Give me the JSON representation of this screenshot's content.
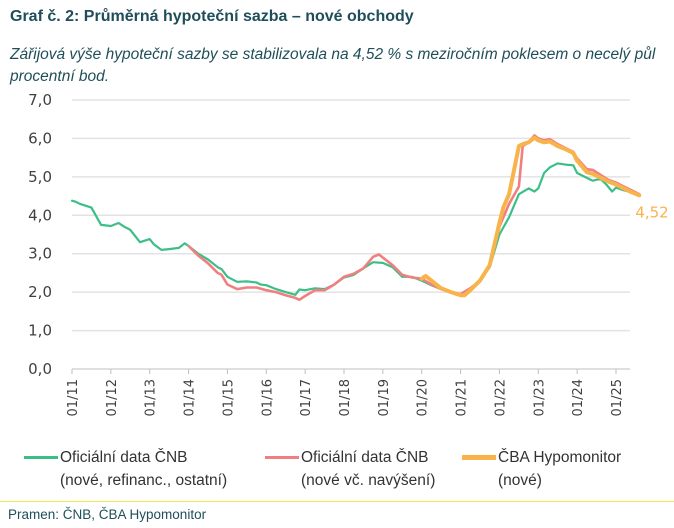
{
  "header": {
    "title": "Graf č. 2: Průměrná hypoteční sazba – nové obchody",
    "subtitle": "Zářijová výše hypoteční sazby se stabilizovala na 4,52 % s meziročním poklesem o necelý půl procentní bod."
  },
  "legend": [
    {
      "line1": "Oficiální data ČNB",
      "line2": "(nové, refinanc., ostatní)",
      "color": "#3cbf87"
    },
    {
      "line1": "Oficiální data ČNB",
      "line2": "(nové vč. navýšení)",
      "color": "#f08080"
    },
    {
      "line1": "ČBA Hypomonitor",
      "line2": "(nové)",
      "color": "#f9b34b"
    }
  ],
  "footer": {
    "source": "Pramen: ČNB, ČBA Hypomonitor"
  },
  "chart_data": {
    "type": "line",
    "title": "Graf č. 2: Průměrná hypoteční sazba – nové obchody",
    "xlabel": "",
    "ylabel": "",
    "ylim": [
      0,
      7
    ],
    "yticks": [
      "0,0",
      "1,0",
      "2,0",
      "3,0",
      "4,0",
      "5,0",
      "6,0",
      "7,0"
    ],
    "xticks": [
      "01/11",
      "01/12",
      "01/13",
      "01/14",
      "01/15",
      "01/16",
      "01/17",
      "01/18",
      "01/19",
      "01/20",
      "01/21",
      "01/22",
      "01/23",
      "01/24",
      "01/25"
    ],
    "xlim": [
      2011.0,
      2025.67
    ],
    "grid": "horizontal",
    "legend_position": "bottom",
    "end_label": "4,52",
    "series": [
      {
        "name": "Oficiální data ČNB (nové, refinanc., ostatní)",
        "color": "#3cbf87",
        "x": [
          2011.0,
          2011.1,
          2011.2,
          2011.35,
          2011.5,
          2011.75,
          2012.0,
          2012.2,
          2012.35,
          2012.5,
          2012.75,
          2013.0,
          2013.1,
          2013.3,
          2013.5,
          2013.75,
          2013.9,
          2014.0,
          2014.25,
          2014.5,
          2014.75,
          2014.85,
          2015.0,
          2015.25,
          2015.5,
          2015.75,
          2015.85,
          2016.0,
          2016.25,
          2016.5,
          2016.75,
          2016.85,
          2017.0,
          2017.25,
          2017.5,
          2017.75,
          2018.0,
          2018.25,
          2018.5,
          2018.75,
          2019.0,
          2019.25,
          2019.5,
          2019.75,
          2020.0,
          2020.25,
          2020.5,
          2020.75,
          2021.0,
          2021.25,
          2021.5,
          2021.75,
          2022.0,
          2022.25,
          2022.5,
          2022.75,
          2022.9,
          2023.0,
          2023.15,
          2023.3,
          2023.5,
          2023.7,
          2023.9,
          2024.0,
          2024.2,
          2024.4,
          2024.6,
          2024.75,
          2024.9,
          2025.0,
          2025.2,
          2025.4,
          2025.6
        ],
        "values": [
          4.38,
          4.35,
          4.3,
          4.25,
          4.2,
          3.75,
          3.72,
          3.8,
          3.7,
          3.62,
          3.3,
          3.38,
          3.25,
          3.1,
          3.12,
          3.15,
          3.27,
          3.2,
          3.0,
          2.85,
          2.65,
          2.6,
          2.4,
          2.27,
          2.28,
          2.25,
          2.2,
          2.18,
          2.08,
          2.0,
          1.93,
          2.07,
          2.05,
          2.1,
          2.08,
          2.2,
          2.38,
          2.45,
          2.62,
          2.78,
          2.76,
          2.65,
          2.4,
          2.4,
          2.3,
          2.18,
          2.08,
          2.0,
          1.95,
          2.1,
          2.3,
          2.65,
          3.5,
          3.95,
          4.55,
          4.7,
          4.62,
          4.7,
          5.1,
          5.25,
          5.35,
          5.32,
          5.3,
          5.1,
          5.0,
          4.9,
          4.95,
          4.8,
          4.62,
          4.72,
          4.65,
          4.6,
          4.52
        ]
      },
      {
        "name": "Oficiální data ČNB (nové vč. navýšení)",
        "color": "#f08080",
        "x": [
          2014.0,
          2014.25,
          2014.5,
          2014.75,
          2014.85,
          2015.0,
          2015.25,
          2015.5,
          2015.75,
          2016.0,
          2016.25,
          2016.5,
          2016.75,
          2016.85,
          2017.0,
          2017.25,
          2017.5,
          2017.75,
          2018.0,
          2018.25,
          2018.5,
          2018.75,
          2018.9,
          2019.0,
          2019.25,
          2019.5,
          2019.75,
          2020.0,
          2020.25,
          2020.5,
          2020.75,
          2021.0,
          2021.25,
          2021.5,
          2021.75,
          2022.0,
          2022.25,
          2022.5,
          2022.6,
          2022.75,
          2022.9,
          2023.0,
          2023.15,
          2023.3,
          2023.5,
          2023.7,
          2023.9,
          2024.0,
          2024.25,
          2024.4,
          2024.6,
          2024.8,
          2025.0,
          2025.2,
          2025.4,
          2025.6
        ],
        "values": [
          3.2,
          2.95,
          2.75,
          2.5,
          2.45,
          2.2,
          2.08,
          2.12,
          2.12,
          2.05,
          2.0,
          1.92,
          1.85,
          1.8,
          1.9,
          2.05,
          2.05,
          2.2,
          2.4,
          2.48,
          2.62,
          2.92,
          2.98,
          2.9,
          2.7,
          2.45,
          2.38,
          2.35,
          2.2,
          2.08,
          2.0,
          1.95,
          2.1,
          2.3,
          2.7,
          3.7,
          4.3,
          4.75,
          5.8,
          5.9,
          6.08,
          6.0,
          5.95,
          5.98,
          5.85,
          5.75,
          5.65,
          5.48,
          5.2,
          5.18,
          5.05,
          4.92,
          4.85,
          4.75,
          4.65,
          4.55
        ]
      },
      {
        "name": "ČBA Hypomonitor (nové)",
        "color": "#f9b34b",
        "x": [
          2020.0,
          2020.1,
          2020.25,
          2020.5,
          2020.75,
          2021.0,
          2021.1,
          2021.25,
          2021.5,
          2021.75,
          2022.0,
          2022.1,
          2022.25,
          2022.5,
          2022.6,
          2022.75,
          2022.9,
          2023.0,
          2023.15,
          2023.3,
          2023.5,
          2023.7,
          2023.9,
          2024.0,
          2024.25,
          2024.4,
          2024.6,
          2024.8,
          2025.0,
          2025.2,
          2025.4,
          2025.6
        ],
        "values": [
          2.35,
          2.42,
          2.3,
          2.1,
          2.0,
          1.92,
          1.92,
          2.05,
          2.3,
          2.7,
          3.8,
          4.2,
          4.55,
          5.8,
          5.85,
          5.9,
          6.02,
          5.95,
          5.9,
          5.92,
          5.8,
          5.72,
          5.62,
          5.42,
          5.12,
          5.08,
          4.98,
          4.88,
          4.8,
          4.7,
          4.6,
          4.52
        ]
      }
    ]
  }
}
